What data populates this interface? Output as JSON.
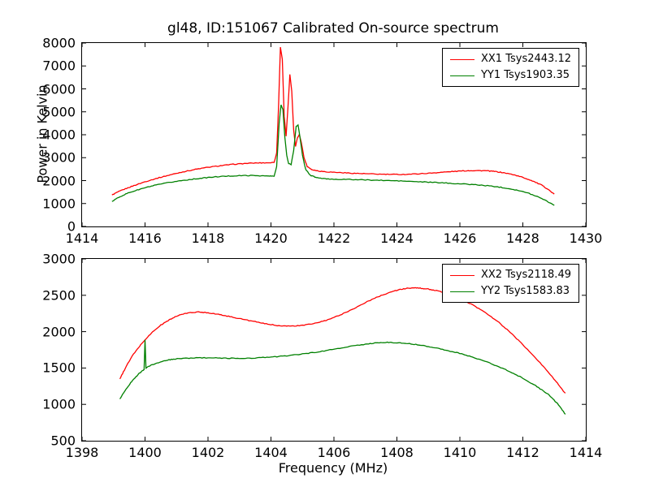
{
  "figure": {
    "title": "gl48, ID:151067 Calibrated On-source spectrum",
    "background": "#ffffff",
    "axis_color": "#000000"
  },
  "chart_data": [
    {
      "type": "line",
      "title": "gl48, ID:151067 Calibrated On-source spectrum",
      "xlabel": "",
      "ylabel": "Power in Kelvin",
      "xlim": [
        1414,
        1430
      ],
      "ylim": [
        0,
        8000
      ],
      "xticks": [
        1414,
        1416,
        1418,
        1420,
        1422,
        1424,
        1426,
        1428,
        1430
      ],
      "yticks": [
        0,
        1000,
        2000,
        3000,
        4000,
        5000,
        6000,
        7000,
        8000
      ],
      "grid": false,
      "legend_position": "upper right",
      "series": [
        {
          "name": "XX1 Tsys2443.12",
          "color": "#ff0000",
          "points": [
            [
              1414.95,
              1370
            ],
            [
              1415.1,
              1480
            ],
            [
              1415.3,
              1600
            ],
            [
              1415.6,
              1760
            ],
            [
              1416.0,
              1950
            ],
            [
              1416.4,
              2110
            ],
            [
              1416.8,
              2250
            ],
            [
              1417.2,
              2380
            ],
            [
              1417.6,
              2490
            ],
            [
              1418.0,
              2580
            ],
            [
              1418.4,
              2650
            ],
            [
              1418.8,
              2710
            ],
            [
              1419.2,
              2750
            ],
            [
              1419.6,
              2770
            ],
            [
              1420.0,
              2780
            ],
            [
              1420.1,
              2800
            ],
            [
              1420.18,
              3200
            ],
            [
              1420.24,
              5200
            ],
            [
              1420.3,
              7820
            ],
            [
              1420.36,
              7300
            ],
            [
              1420.42,
              4800
            ],
            [
              1420.48,
              3950
            ],
            [
              1420.54,
              5200
            ],
            [
              1420.6,
              6620
            ],
            [
              1420.66,
              5900
            ],
            [
              1420.72,
              4200
            ],
            [
              1420.78,
              3500
            ],
            [
              1420.84,
              3850
            ],
            [
              1420.9,
              4020
            ],
            [
              1420.96,
              3700
            ],
            [
              1421.05,
              3000
            ],
            [
              1421.15,
              2620
            ],
            [
              1421.3,
              2480
            ],
            [
              1421.5,
              2420
            ],
            [
              1421.8,
              2380
            ],
            [
              1422.2,
              2350
            ],
            [
              1422.6,
              2320
            ],
            [
              1423.0,
              2300
            ],
            [
              1423.4,
              2280
            ],
            [
              1423.8,
              2270
            ],
            [
              1424.2,
              2270
            ],
            [
              1424.6,
              2290
            ],
            [
              1425.0,
              2320
            ],
            [
              1425.4,
              2360
            ],
            [
              1425.8,
              2400
            ],
            [
              1426.2,
              2430
            ],
            [
              1426.5,
              2440
            ],
            [
              1426.8,
              2430
            ],
            [
              1427.1,
              2400
            ],
            [
              1427.4,
              2340
            ],
            [
              1427.7,
              2260
            ],
            [
              1428.0,
              2140
            ],
            [
              1428.3,
              1990
            ],
            [
              1428.6,
              1800
            ],
            [
              1428.8,
              1620
            ],
            [
              1429.0,
              1400
            ]
          ]
        },
        {
          "name": "YY1 Tsys1903.35",
          "color": "#008000",
          "points": [
            [
              1414.95,
              1090
            ],
            [
              1415.2,
              1300
            ],
            [
              1415.5,
              1480
            ],
            [
              1415.9,
              1650
            ],
            [
              1416.3,
              1790
            ],
            [
              1416.7,
              1900
            ],
            [
              1417.1,
              1990
            ],
            [
              1417.5,
              2060
            ],
            [
              1417.9,
              2120
            ],
            [
              1418.3,
              2170
            ],
            [
              1418.7,
              2200
            ],
            [
              1419.1,
              2220
            ],
            [
              1419.5,
              2220
            ],
            [
              1419.9,
              2200
            ],
            [
              1420.1,
              2190
            ],
            [
              1420.18,
              2600
            ],
            [
              1420.26,
              4500
            ],
            [
              1420.32,
              5320
            ],
            [
              1420.38,
              5100
            ],
            [
              1420.44,
              3900
            ],
            [
              1420.5,
              3100
            ],
            [
              1420.56,
              2750
            ],
            [
              1420.64,
              2700
            ],
            [
              1420.72,
              3300
            ],
            [
              1420.8,
              4380
            ],
            [
              1420.86,
              4420
            ],
            [
              1420.92,
              3900
            ],
            [
              1421.0,
              3100
            ],
            [
              1421.1,
              2500
            ],
            [
              1421.25,
              2230
            ],
            [
              1421.45,
              2130
            ],
            [
              1421.7,
              2080
            ],
            [
              1422.0,
              2060
            ],
            [
              1422.5,
              2050
            ],
            [
              1423.0,
              2030
            ],
            [
              1423.5,
              2010
            ],
            [
              1424.0,
              1990
            ],
            [
              1424.5,
              1960
            ],
            [
              1425.0,
              1930
            ],
            [
              1425.5,
              1900
            ],
            [
              1426.0,
              1860
            ],
            [
              1426.5,
              1820
            ],
            [
              1427.0,
              1760
            ],
            [
              1427.4,
              1690
            ],
            [
              1427.8,
              1590
            ],
            [
              1428.2,
              1440
            ],
            [
              1428.6,
              1230
            ],
            [
              1428.9,
              1000
            ],
            [
              1429.0,
              930
            ]
          ]
        }
      ]
    },
    {
      "type": "line",
      "title": "",
      "xlabel": "Frequency (MHz)",
      "ylabel": "",
      "xlim": [
        1398,
        1414
      ],
      "ylim": [
        500,
        3000
      ],
      "xticks": [
        1398,
        1400,
        1402,
        1404,
        1406,
        1408,
        1410,
        1412,
        1414
      ],
      "yticks": [
        500,
        1000,
        1500,
        2000,
        2500,
        3000
      ],
      "grid": false,
      "legend_position": "upper right",
      "series": [
        {
          "name": "XX2 Tsys2118.49",
          "color": "#ff0000",
          "points": [
            [
              1399.2,
              1350
            ],
            [
              1399.4,
              1520
            ],
            [
              1399.6,
              1670
            ],
            [
              1399.9,
              1840
            ],
            [
              1400.2,
              1980
            ],
            [
              1400.5,
              2090
            ],
            [
              1400.8,
              2170
            ],
            [
              1401.1,
              2230
            ],
            [
              1401.4,
              2260
            ],
            [
              1401.7,
              2270
            ],
            [
              1402.0,
              2260
            ],
            [
              1402.3,
              2240
            ],
            [
              1402.6,
              2215
            ],
            [
              1403.0,
              2180
            ],
            [
              1403.4,
              2145
            ],
            [
              1403.8,
              2110
            ],
            [
              1404.2,
              2085
            ],
            [
              1404.6,
              2075
            ],
            [
              1405.0,
              2085
            ],
            [
              1405.4,
              2115
            ],
            [
              1405.8,
              2160
            ],
            [
              1406.2,
              2230
            ],
            [
              1406.6,
              2310
            ],
            [
              1407.0,
              2400
            ],
            [
              1407.4,
              2480
            ],
            [
              1407.8,
              2545
            ],
            [
              1408.1,
              2580
            ],
            [
              1408.4,
              2600
            ],
            [
              1408.7,
              2600
            ],
            [
              1409.0,
              2585
            ],
            [
              1409.3,
              2560
            ],
            [
              1409.6,
              2520
            ],
            [
              1410.0,
              2455
            ],
            [
              1410.4,
              2370
            ],
            [
              1410.8,
              2265
            ],
            [
              1411.2,
              2140
            ],
            [
              1411.6,
              1990
            ],
            [
              1412.0,
              1820
            ],
            [
              1412.4,
              1640
            ],
            [
              1412.8,
              1450
            ],
            [
              1413.1,
              1290
            ],
            [
              1413.35,
              1150
            ]
          ]
        },
        {
          "name": "YY2 Tsys1583.83",
          "color": "#008000",
          "points": [
            [
              1399.2,
              1075
            ],
            [
              1399.4,
              1210
            ],
            [
              1399.6,
              1330
            ],
            [
              1399.8,
              1420
            ],
            [
              1399.97,
              1480
            ],
            [
              1400.0,
              1890
            ],
            [
              1400.03,
              1500
            ],
            [
              1400.2,
              1540
            ],
            [
              1400.5,
              1585
            ],
            [
              1400.8,
              1615
            ],
            [
              1401.1,
              1630
            ],
            [
              1401.5,
              1638
            ],
            [
              1402.0,
              1640
            ],
            [
              1402.5,
              1636
            ],
            [
              1403.0,
              1632
            ],
            [
              1403.5,
              1638
            ],
            [
              1404.0,
              1650
            ],
            [
              1404.5,
              1668
            ],
            [
              1405.0,
              1692
            ],
            [
              1405.5,
              1722
            ],
            [
              1406.0,
              1758
            ],
            [
              1406.5,
              1795
            ],
            [
              1407.0,
              1828
            ],
            [
              1407.4,
              1848
            ],
            [
              1407.7,
              1852
            ],
            [
              1408.0,
              1848
            ],
            [
              1408.4,
              1835
            ],
            [
              1408.8,
              1812
            ],
            [
              1409.2,
              1780
            ],
            [
              1409.6,
              1742
            ],
            [
              1410.0,
              1700
            ],
            [
              1410.4,
              1650
            ],
            [
              1410.8,
              1592
            ],
            [
              1411.2,
              1525
            ],
            [
              1411.6,
              1448
            ],
            [
              1412.0,
              1360
            ],
            [
              1412.4,
              1258
            ],
            [
              1412.8,
              1140
            ],
            [
              1413.1,
              1010
            ],
            [
              1413.35,
              865
            ]
          ]
        }
      ]
    }
  ]
}
